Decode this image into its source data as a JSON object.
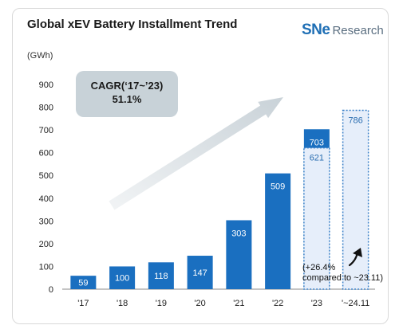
{
  "header": {
    "title": "Global xEV Battery Installment Trend",
    "logo_mark": "SNe",
    "logo_word": "Research"
  },
  "colors": {
    "bar_fill": "#1a6fc0",
    "bar_fill_light": "#e6eefa",
    "bar_outline_dashed": "#3a80c8",
    "value_label_light": "#ffffff",
    "value_label_dark": "#2a6db0",
    "arrow": "#c9d2d8"
  },
  "cagr": {
    "title": "CAGR(‘17~’23)",
    "value": "51.1%"
  },
  "note": {
    "line1": "(+26.4%",
    "line2": "compared to ~23.11)"
  },
  "chart_data": {
    "type": "bar",
    "title": "Global xEV Battery Installment Trend",
    "unit_label": "(GWh)",
    "ylim": [
      0,
      900
    ],
    "yticks": [
      0,
      100,
      200,
      300,
      400,
      500,
      600,
      700,
      800,
      900
    ],
    "categories": [
      "'17",
      "'18",
      "'19",
      "'20",
      "'21",
      "'22",
      "'23",
      "'~24.11"
    ],
    "values": [
      59,
      100,
      118,
      147,
      303,
      509,
      703,
      786
    ],
    "comparison_bar": {
      "category": "'23",
      "value": 621,
      "style": "dashed-outline"
    },
    "highlight_bar": {
      "category": "'~24.11",
      "value": 786,
      "style": "dashed-outline"
    },
    "grid": false,
    "legend": "none"
  }
}
